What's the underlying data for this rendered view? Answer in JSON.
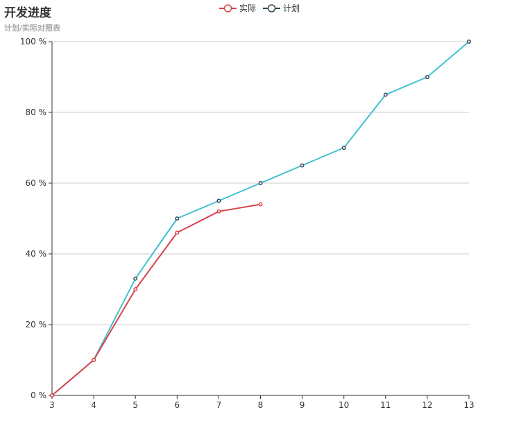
{
  "title": "开发进度",
  "subtitle": "计划/实际对照表",
  "legend": [
    {
      "name": "实际",
      "color": "#d8434a"
    },
    {
      "name": "计划",
      "color": "#2f4554"
    }
  ],
  "chart_data": {
    "type": "line",
    "title": "开发进度",
    "subtitle": "计划/实际对照表",
    "x": [
      3,
      4,
      5,
      6,
      7,
      8,
      9,
      10,
      11,
      12,
      13
    ],
    "xlim": [
      3,
      13
    ],
    "ylim": [
      0,
      100
    ],
    "y_ticks": [
      0,
      20,
      40,
      60,
      80,
      100
    ],
    "y_tick_suffix": " %",
    "grid": "horizontal",
    "legend_position": "top-center",
    "series": [
      {
        "name": "实际",
        "line_color": "#d8434a",
        "point_color": "#d8434a",
        "x": [
          3,
          4,
          5,
          6,
          7,
          8
        ],
        "values": [
          0,
          10,
          30,
          46,
          52,
          54
        ]
      },
      {
        "name": "计划",
        "line_color": "#3fc2d0",
        "point_color": "#2f4554",
        "x": [
          3,
          4,
          5,
          6,
          7,
          8,
          9,
          10,
          11,
          12,
          13
        ],
        "values": [
          0,
          10,
          33,
          50,
          55,
          60,
          65,
          70,
          85,
          90,
          100
        ]
      }
    ]
  }
}
